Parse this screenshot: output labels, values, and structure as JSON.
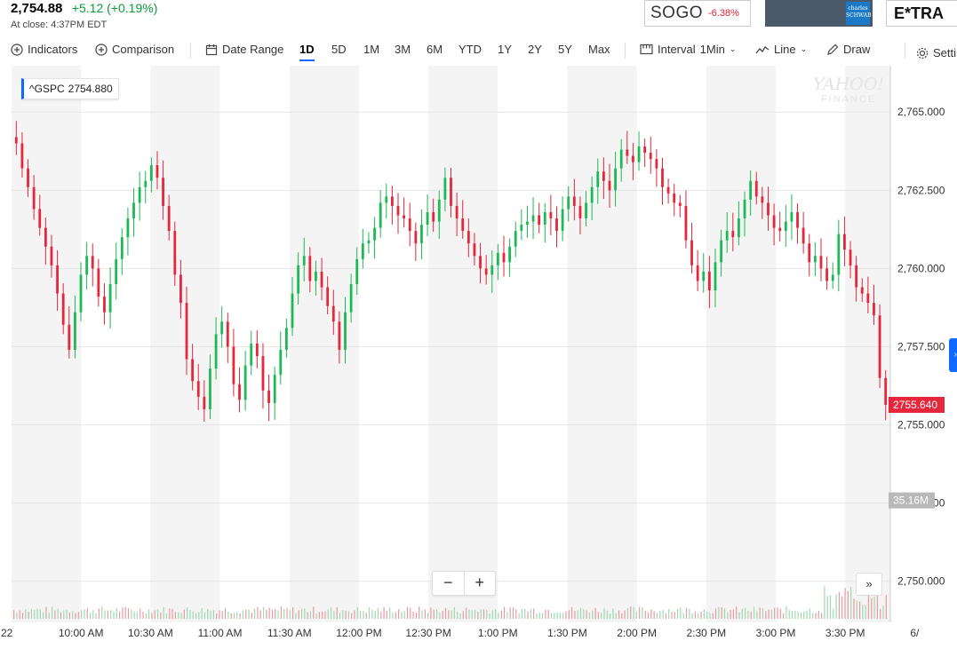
{
  "quote": {
    "price": "2,754.88",
    "change": "+5.12 (+0.19%)",
    "close_time": "At close: 4:37PM EDT"
  },
  "ads": {
    "sogo_text": "SOGO",
    "sogo_pct": "-6.38%",
    "schwab_text": "charles SCHWAB",
    "etrade_text": "E*TRA"
  },
  "toolbar": {
    "indicators": "Indicators",
    "comparison": "Comparison",
    "date_range": "Date Range",
    "ranges": [
      "1D",
      "5D",
      "1M",
      "3M",
      "6M",
      "YTD",
      "1Y",
      "2Y",
      "5Y",
      "Max"
    ],
    "active_range": "1D",
    "interval_label": "Interval",
    "interval_value": "1Min",
    "line": "Line",
    "draw": "Draw",
    "settings": "Setti"
  },
  "badge": {
    "symbol": "^GSPC",
    "value": "2754.880"
  },
  "watermark": {
    "line1": "YAHOO!",
    "line2": "FINANCE"
  },
  "controls": {
    "zoom_out": "−",
    "zoom_in": "+",
    "skip": "»",
    "side_tab": "›"
  },
  "colors": {
    "up": "#1db954",
    "down": "#e6263a",
    "accent": "#0f69ff",
    "volume_down": "#e99aa2",
    "volume_up": "#9fd9b0"
  },
  "chart_data": {
    "type": "candlestick",
    "symbol": "^GSPC",
    "y_ticks": [
      "2,765.000",
      "2,762.500",
      "2,760.000",
      "2,757.500",
      "2,755.000",
      "2,752.500",
      "2,750.000"
    ],
    "y_values": [
      2765,
      2762.5,
      2760,
      2757.5,
      2755,
      2752.5,
      2750
    ],
    "ylim": [
      2748.8,
      2766.0
    ],
    "x_ticks": [
      "22",
      "10:00 AM",
      "10:30 AM",
      "11:00 AM",
      "11:30 AM",
      "12:00 PM",
      "12:30 PM",
      "1:00 PM",
      "1:30 PM",
      "2:00 PM",
      "2:30 PM",
      "3:00 PM",
      "3:30 PM",
      "6/"
    ],
    "last_price_label": "2755.640",
    "last_price": 2755.64,
    "volume_label": "35.16M",
    "grid": true,
    "series": [
      {
        "close": [
          2764.0,
          2763.2,
          2762.6,
          2761.9,
          2761.3,
          2760.7,
          2760.1,
          2759.2,
          2758.2,
          2757.4,
          2758.6,
          2759.8,
          2760.4,
          2760.0,
          2759.1,
          2758.6,
          2759.5,
          2760.3,
          2761.0,
          2761.6,
          2762.1,
          2762.6,
          2762.8,
          2763.3,
          2762.9,
          2762.0,
          2761.2,
          2759.8,
          2758.9,
          2757.1,
          2756.4,
          2755.9,
          2755.5,
          2756.8,
          2757.9,
          2758.3,
          2757.5,
          2756.3,
          2755.8,
          2756.9,
          2757.6,
          2757.2,
          2756.1,
          2755.7,
          2756.6,
          2757.4,
          2758.1,
          2759.2,
          2760.1,
          2760.4,
          2759.6,
          2759.9,
          2759.4,
          2758.8,
          2758.3,
          2757.4,
          2758.6,
          2759.5,
          2760.3,
          2760.8,
          2760.9,
          2761.3,
          2762.1,
          2762.3,
          2762.0,
          2761.7,
          2761.6,
          2761.2,
          2760.8,
          2761.4,
          2761.8,
          2761.5,
          2762.2,
          2762.9,
          2762.0,
          2761.6,
          2761.2,
          2760.8,
          2760.4,
          2760.0,
          2759.8,
          2760.1,
          2760.5,
          2760.2,
          2760.7,
          2761.2,
          2761.4,
          2761.5,
          2761.7,
          2761.4,
          2761.8,
          2761.6,
          2761.2,
          2761.9,
          2762.3,
          2762.0,
          2761.6,
          2762.1,
          2762.6,
          2763.1,
          2762.8,
          2762.5,
          2763.2,
          2763.8,
          2763.6,
          2763.4,
          2763.9,
          2763.7,
          2763.5,
          2763.2,
          2762.6,
          2762.4,
          2762.1,
          2762.0,
          2760.9,
          2760.1,
          2759.6,
          2759.9,
          2759.3,
          2760.2,
          2760.9,
          2761.2,
          2761.0,
          2761.6,
          2762.2,
          2762.8,
          2762.3,
          2762.1,
          2761.7,
          2761.3,
          2761.2,
          2761.5,
          2761.8,
          2761.3,
          2760.8,
          2760.2,
          2760.4,
          2760.0,
          2759.6,
          2759.8,
          2761.1,
          2760.6,
          2760.1,
          2759.4,
          2759.2,
          2758.9,
          2758.5,
          2756.5,
          2755.64
        ]
      }
    ]
  }
}
